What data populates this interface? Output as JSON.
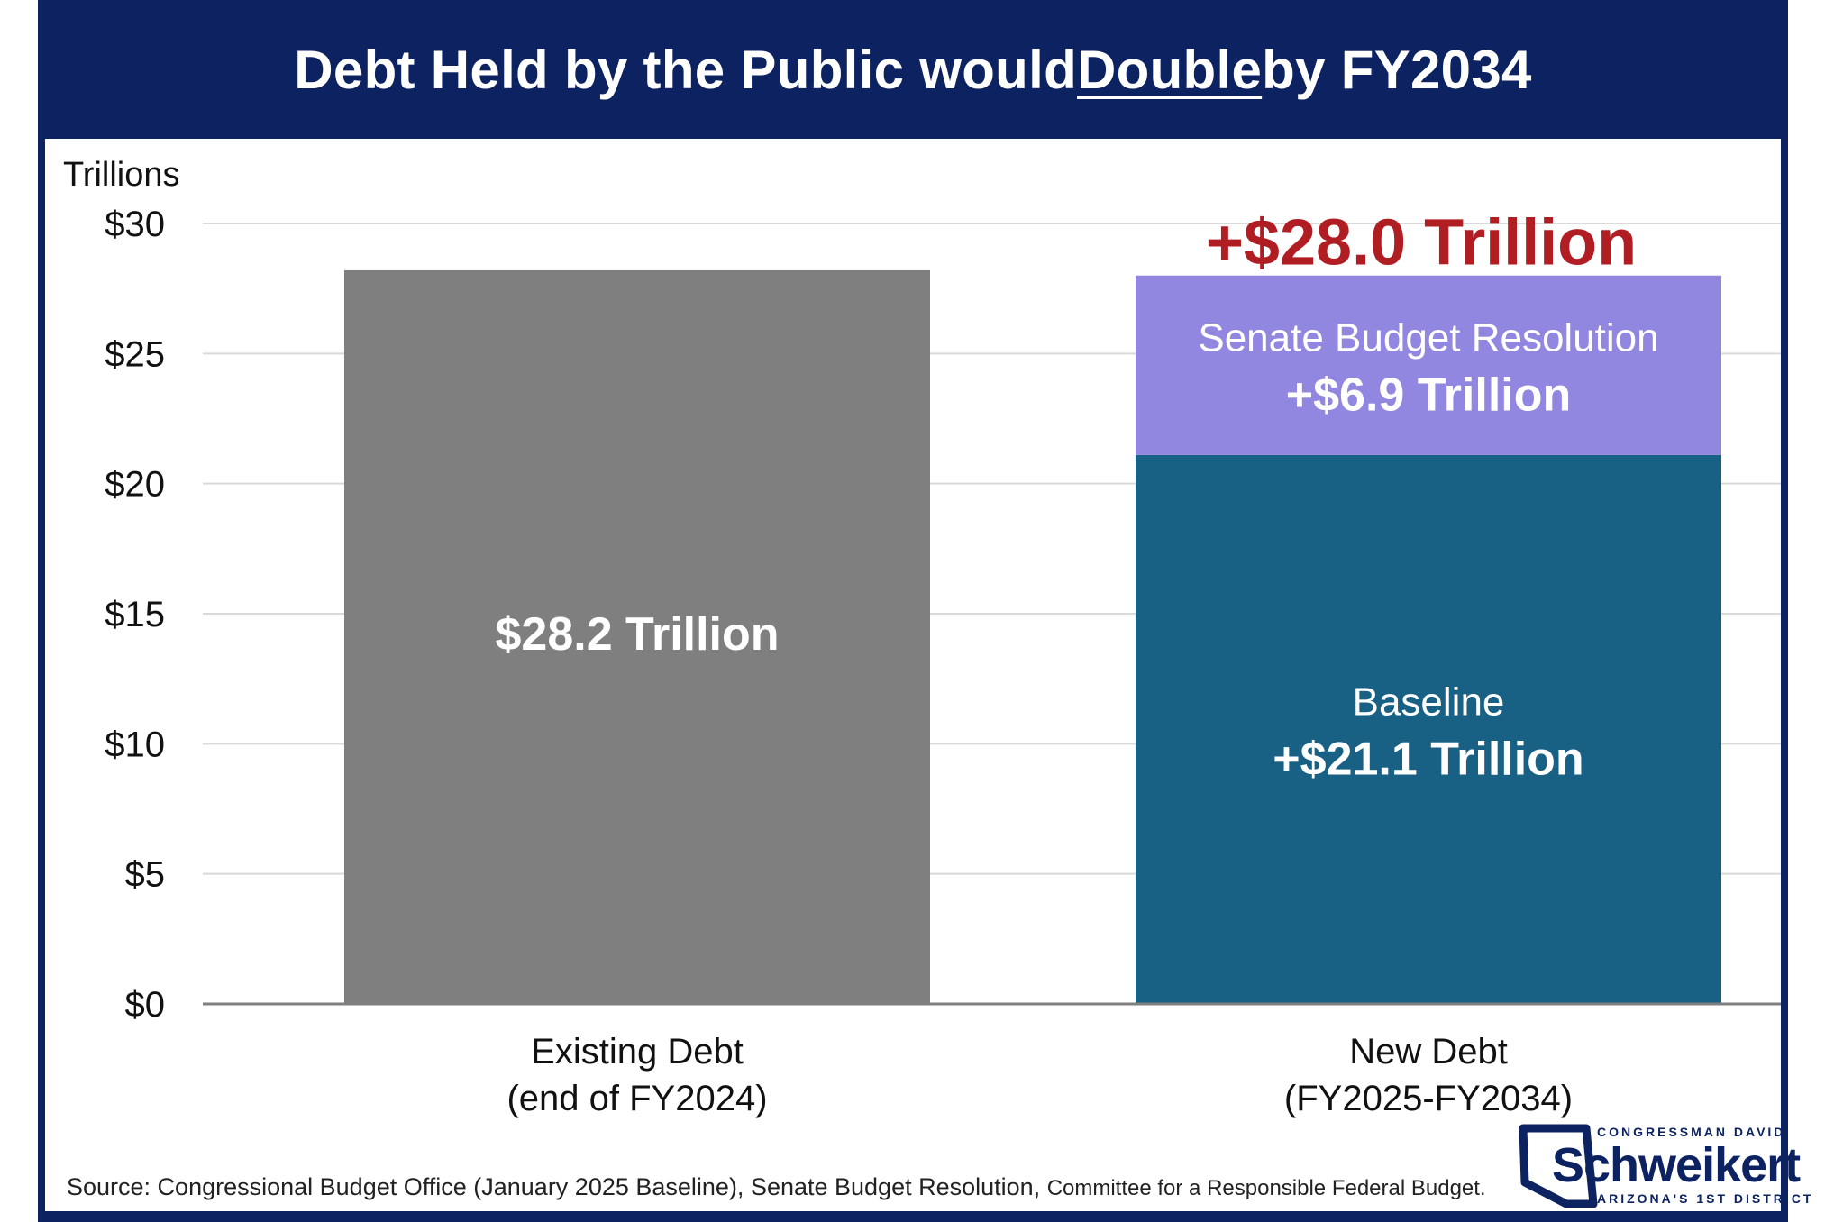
{
  "title": {
    "before": "Debt Held by the Public would ",
    "emphasis": "Double",
    "after": " by FY2034"
  },
  "colors": {
    "header_bg": "#0c2261",
    "existing_bar": "#7f7f7f",
    "baseline_bar": "#186184",
    "senate_bar": "#9287e0",
    "total_label": "#b01e23",
    "axis_text": "#111111",
    "grid": "#d9d9d9"
  },
  "chart_data": {
    "type": "bar",
    "stacked": true,
    "ylabel": "Trillions",
    "ylim": [
      0,
      30
    ],
    "yticks": [
      0,
      5,
      10,
      15,
      20,
      25,
      30
    ],
    "ytick_labels": [
      "$0",
      "$5",
      "$10",
      "$15",
      "$20",
      "$25",
      "$30"
    ],
    "grid": true,
    "categories": [
      [
        "Existing Debt",
        "(end of FY2024)"
      ],
      [
        "New Debt",
        "(FY2025-FY2034)"
      ]
    ],
    "bars": [
      {
        "category_index": 0,
        "segments": [
          {
            "name": "",
            "value": 28.2,
            "color_key": "existing_bar",
            "label_name": "",
            "label_value": "$28.2 Trillion"
          }
        ]
      },
      {
        "category_index": 1,
        "total_label": "+$28.0 Trillion",
        "segments": [
          {
            "name": "Baseline",
            "value": 21.1,
            "color_key": "baseline_bar",
            "label_name": "Baseline",
            "label_value": "+$21.1 Trillion"
          },
          {
            "name": "Senate Budget Resolution",
            "value": 6.9,
            "color_key": "senate_bar",
            "label_name": "Senate Budget Resolution",
            "label_value": "+$6.9 Trillion"
          }
        ]
      }
    ]
  },
  "source": {
    "main": "Source: Congressional Budget Office (January 2025 Baseline), Senate Budget Resolution, ",
    "small": "Committee for a Responsible Federal Budget."
  },
  "logo": {
    "top": "CONGRESSMAN DAVID",
    "name": "Schweikert",
    "bottom": "ARIZONA'S 1ST DISTRICT"
  }
}
